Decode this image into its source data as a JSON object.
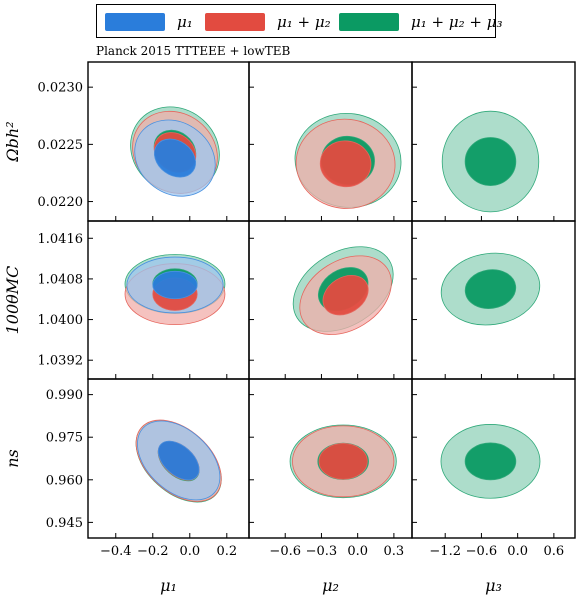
{
  "chart_data": {
    "type": "scatter",
    "subtitle": "Planck 2015 TTTEEE + lowTEB",
    "legend": {
      "placement": "top",
      "entries": [
        {
          "name": "μ1",
          "label": "μ₁",
          "color": "#2a7ddb"
        },
        {
          "name": "μ1 + μ2",
          "label": "μ₁ + μ₂",
          "color": "#e24b40"
        },
        {
          "name": "μ1 + μ2 + μ3",
          "label": "μ₁ + μ₂ + μ₃",
          "color": "#0b9a63"
        }
      ]
    },
    "columns": [
      {
        "label": "μ₁",
        "param": "mu1",
        "ticks": [
          -0.4,
          -0.2,
          0.0,
          0.2
        ],
        "tick_labels": [
          "−0.4",
          "−0.2",
          "0.0",
          "0.2"
        ],
        "xlim": [
          -0.55,
          0.32
        ]
      },
      {
        "label": "μ₂",
        "param": "mu2",
        "ticks": [
          -0.6,
          -0.3,
          0.0,
          0.3
        ],
        "tick_labels": [
          "−0.6",
          "−0.3",
          "0.0",
          "0.3"
        ],
        "xlim": [
          -0.9,
          0.45
        ]
      },
      {
        "label": "μ₃",
        "param": "mu3",
        "ticks": [
          -1.2,
          -0.6,
          0.0,
          0.6
        ],
        "tick_labels": [
          "−1.2",
          "−0.6",
          "0.0",
          "0.6"
        ],
        "xlim": [
          -1.75,
          0.95
        ]
      }
    ],
    "rows": [
      {
        "label": "Ωbh²",
        "param": "omegabh2",
        "ticks": [
          0.022,
          0.0225,
          0.023
        ],
        "tick_labels": [
          "0.0220",
          "0.0225",
          "0.0230"
        ],
        "ylim": [
          0.02183,
          0.02322
        ]
      },
      {
        "label": "100θMC",
        "param": "theta",
        "ticks": [
          1.0392,
          1.04,
          1.0408,
          1.0416
        ],
        "tick_labels": [
          "1.0392",
          "1.0400",
          "1.0408",
          "1.0416"
        ],
        "ylim": [
          1.03883,
          1.04194
        ]
      },
      {
        "label": "ns",
        "param": "ns",
        "ticks": [
          0.945,
          0.96,
          0.975,
          0.99
        ],
        "tick_labels": [
          "0.945",
          "0.960",
          "0.975",
          "0.990"
        ],
        "ylim": [
          0.9395,
          0.9955
        ]
      }
    ],
    "contours": [
      {
        "row": 0,
        "col": 0,
        "series": [
          {
            "name": "μ1 + μ2 + μ3",
            "cx": -0.08,
            "cy": 0.02245,
            "rx68": 0.12,
            "ry68": 0.00016,
            "rx95": 0.25,
            "ry95": 0.00036,
            "angle": 38
          },
          {
            "name": "μ1 + μ2",
            "cx": -0.08,
            "cy": 0.02243,
            "rx68": 0.12,
            "ry68": 0.00016,
            "rx95": 0.24,
            "ry95": 0.00034,
            "angle": 38
          },
          {
            "name": "μ1",
            "cx": -0.08,
            "cy": 0.02238,
            "rx68": 0.12,
            "ry68": 0.00015,
            "rx95": 0.23,
            "ry95": 0.00031,
            "angle": 36
          }
        ]
      },
      {
        "row": 0,
        "col": 1,
        "series": [
          {
            "name": "μ1 + μ2 + μ3",
            "cx": -0.08,
            "cy": 0.02236,
            "rx68": 0.22,
            "ry68": 0.00021,
            "rx95": 0.44,
            "ry95": 0.00041,
            "angle": 8
          },
          {
            "name": "μ1 + μ2",
            "cx": -0.1,
            "cy": 0.02233,
            "rx68": 0.21,
            "ry68": 0.0002,
            "rx95": 0.41,
            "ry95": 0.00039,
            "angle": 6
          }
        ]
      },
      {
        "row": 0,
        "col": 2,
        "series": [
          {
            "name": "μ1 + μ2 + μ3",
            "cx": -0.45,
            "cy": 0.02235,
            "rx68": 0.42,
            "ry68": 0.00021,
            "rx95": 0.8,
            "ry95": 0.00044,
            "angle": 0
          }
        ]
      },
      {
        "row": 1,
        "col": 0,
        "series": [
          {
            "name": "μ1 + μ2 + μ3",
            "cx": -0.08,
            "cy": 1.0407,
            "rx68": 0.12,
            "ry68": 0.0003,
            "rx95": 0.27,
            "ry95": 0.00058,
            "angle": 0
          },
          {
            "name": "μ1 + μ2",
            "cx": -0.08,
            "cy": 1.0405,
            "rx68": 0.12,
            "ry68": 0.00032,
            "rx95": 0.27,
            "ry95": 0.0006,
            "angle": 0
          },
          {
            "name": "μ1",
            "cx": -0.08,
            "cy": 1.04068,
            "rx68": 0.12,
            "ry68": 0.00027,
            "rx95": 0.26,
            "ry95": 0.00055,
            "angle": 0
          }
        ]
      },
      {
        "row": 1,
        "col": 1,
        "series": [
          {
            "name": "μ1 + μ2 + μ3",
            "cx": -0.12,
            "cy": 1.0406,
            "rx68": 0.22,
            "ry68": 0.00038,
            "rx95": 0.45,
            "ry95": 0.00072,
            "angle": -32
          },
          {
            "name": "μ1 + μ2",
            "cx": -0.1,
            "cy": 1.04048,
            "rx68": 0.2,
            "ry68": 0.00035,
            "rx95": 0.41,
            "ry95": 0.00068,
            "angle": -32
          }
        ]
      },
      {
        "row": 1,
        "col": 2,
        "series": [
          {
            "name": "μ1 + μ2 + μ3",
            "cx": -0.45,
            "cy": 1.0406,
            "rx68": 0.42,
            "ry68": 0.00038,
            "rx95": 0.82,
            "ry95": 0.0007,
            "angle": -8
          }
        ]
      },
      {
        "row": 2,
        "col": 0,
        "series": [
          {
            "name": "μ1 + μ2 + μ3",
            "cx": -0.06,
            "cy": 0.9665,
            "rx68": 0.13,
            "ry68": 0.0052,
            "rx95": 0.27,
            "ry95": 0.011,
            "angle": 42
          },
          {
            "name": "μ1 + μ2",
            "cx": -0.06,
            "cy": 0.9667,
            "rx68": 0.13,
            "ry68": 0.0052,
            "rx95": 0.27,
            "ry95": 0.011,
            "angle": 42
          },
          {
            "name": "μ1",
            "cx": -0.06,
            "cy": 0.9668,
            "rx68": 0.13,
            "ry68": 0.0051,
            "rx95": 0.26,
            "ry95": 0.0108,
            "angle": 42
          }
        ]
      },
      {
        "row": 2,
        "col": 1,
        "series": [
          {
            "name": "μ1 + μ2 + μ3",
            "cx": -0.12,
            "cy": 0.9665,
            "rx68": 0.21,
            "ry68": 0.0064,
            "rx95": 0.44,
            "ry95": 0.0128,
            "angle": 0
          },
          {
            "name": "μ1 + μ2",
            "cx": -0.12,
            "cy": 0.9665,
            "rx68": 0.2,
            "ry68": 0.0063,
            "rx95": 0.42,
            "ry95": 0.0125,
            "angle": 0
          }
        ]
      },
      {
        "row": 2,
        "col": 2,
        "series": [
          {
            "name": "μ1 + μ2 + μ3",
            "cx": -0.45,
            "cy": 0.9665,
            "rx68": 0.42,
            "ry68": 0.0065,
            "rx95": 0.82,
            "ry95": 0.013,
            "angle": 0
          }
        ]
      }
    ],
    "grid": false
  }
}
